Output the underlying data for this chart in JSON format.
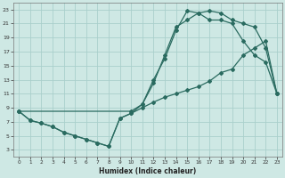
{
  "xlabel": "Humidex (Indice chaleur)",
  "bg_color": "#cee8e4",
  "grid_color": "#aacfcc",
  "line_color": "#2a6b60",
  "xlim": [
    -0.5,
    23.5
  ],
  "ylim": [
    2.0,
    24.0
  ],
  "xticks": [
    0,
    1,
    2,
    3,
    4,
    5,
    6,
    7,
    8,
    9,
    10,
    11,
    12,
    13,
    14,
    15,
    16,
    17,
    18,
    19,
    20,
    21,
    22,
    23
  ],
  "yticks": [
    3,
    5,
    7,
    9,
    11,
    13,
    15,
    17,
    19,
    21,
    23
  ],
  "line1_x": [
    0,
    1,
    2,
    3,
    4,
    5,
    6,
    7,
    8,
    9,
    10,
    11,
    12,
    13,
    14,
    15,
    16,
    17,
    18,
    19,
    20,
    21,
    22,
    23
  ],
  "line1_y": [
    8.5,
    7.2,
    6.8,
    6.3,
    5.5,
    5.0,
    4.5,
    4.0,
    3.5,
    7.5,
    8.2,
    9.5,
    12.5,
    16.5,
    20.5,
    21.5,
    22.5,
    22.8,
    22.5,
    21.5,
    21.0,
    20.5,
    17.5,
    11.0
  ],
  "line2_x": [
    0,
    1,
    2,
    3,
    4,
    5,
    6,
    7,
    8,
    9,
    10,
    11,
    12,
    13,
    14,
    15,
    16,
    17,
    18,
    19,
    20,
    21,
    22,
    23
  ],
  "line2_y": [
    8.5,
    7.2,
    6.8,
    6.3,
    5.5,
    5.0,
    4.5,
    4.0,
    3.5,
    7.5,
    8.2,
    9.0,
    9.8,
    10.5,
    11.0,
    11.5,
    12.0,
    12.8,
    14.0,
    14.5,
    16.5,
    17.5,
    18.5,
    11.0
  ],
  "line3_x": [
    0,
    10,
    11,
    12,
    13,
    14,
    15,
    16,
    17,
    18,
    19,
    20,
    21,
    22,
    23
  ],
  "line3_y": [
    8.5,
    8.5,
    9.5,
    13.0,
    16.0,
    20.0,
    22.8,
    22.5,
    21.5,
    21.5,
    21.0,
    18.5,
    16.5,
    15.5,
    11.0
  ]
}
